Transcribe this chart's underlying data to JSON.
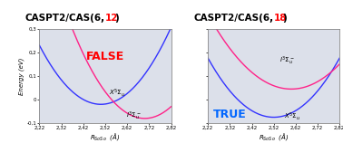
{
  "title_base": "CASPT2/CAS(6,",
  "title_close": ")",
  "title_left_num": "12",
  "title_right_num": "18",
  "title_num_color": "#ff0000",
  "xlabel": "$\\mathit{R}_{SoSo}$  (Å)",
  "ylabel": "Energy (eV)",
  "xlim": [
    2.22,
    2.82
  ],
  "ylim": [
    -0.1,
    0.3
  ],
  "xticks": [
    2.22,
    2.32,
    2.42,
    2.52,
    2.62,
    2.72,
    2.82
  ],
  "xtick_labels": [
    "2,22",
    "2,32",
    "2,42",
    "2,52",
    "2,62",
    "2,72",
    "2,82"
  ],
  "yticks": [
    -0.1,
    0.0,
    0.1,
    0.2,
    0.3
  ],
  "ytick_labels": [
    "-0,1",
    "0",
    "0,1",
    "0,2",
    "0,3"
  ],
  "false_text": "FALSE",
  "false_color": "#ff0000",
  "true_text": "TRUE",
  "true_color": "#0066ff",
  "blue_color": "#3333ff",
  "pink_color": "#ff2288",
  "panel_bg": "#dce0ea",
  "label_X5_left": "$X^5\\Sigma_u$",
  "label_I3_left": "$I^3\\Sigma_u^-$",
  "label_X5_right": "$X^5\\Sigma_u$",
  "label_I3_right": "$I^3\\Sigma_u^-$"
}
